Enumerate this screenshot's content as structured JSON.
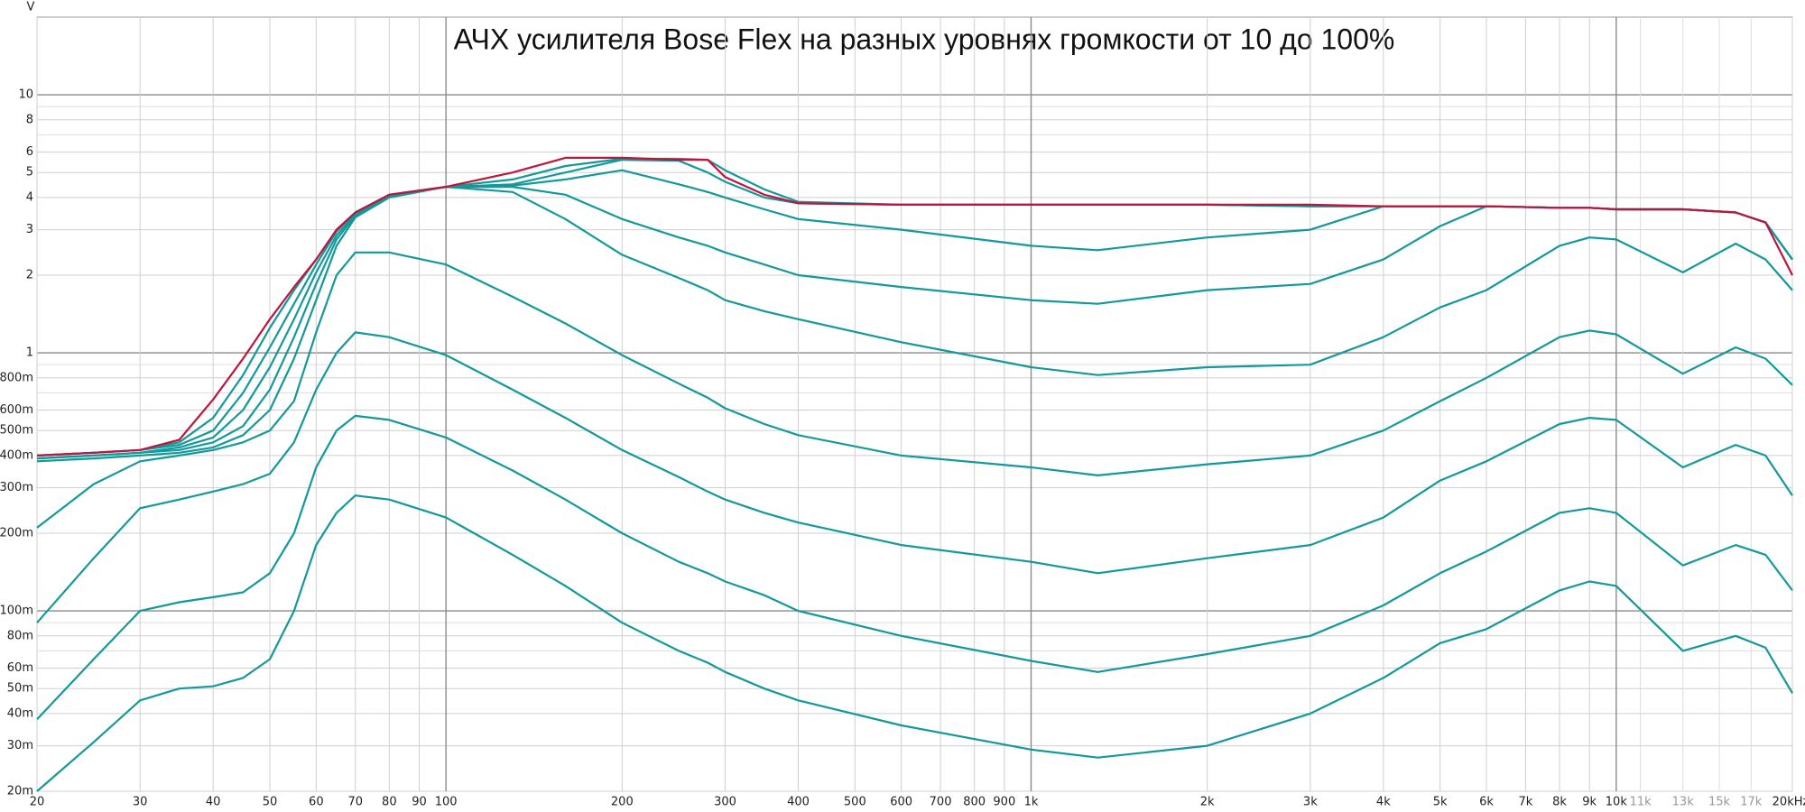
{
  "chart_data": {
    "type": "line",
    "title": "АЧХ усилителя Bose Flex на разных уровнях громкости от 10 до 100%",
    "y_unit": "V",
    "log_x": true,
    "log_y": true,
    "grid": true,
    "xlim": [
      20,
      20000
    ],
    "ylim": [
      0.02,
      20
    ],
    "xticks": [
      20,
      30,
      40,
      50,
      60,
      70,
      80,
      90,
      100,
      200,
      300,
      400,
      500,
      600,
      700,
      800,
      900,
      {
        "value": 1000,
        "label": "1k"
      },
      {
        "value": 2000,
        "label": "2k"
      },
      {
        "value": 3000,
        "label": "3k"
      },
      {
        "value": 4000,
        "label": "4k"
      },
      {
        "value": 5000,
        "label": "5k"
      },
      {
        "value": 6000,
        "label": "6k"
      },
      {
        "value": 7000,
        "label": "7k"
      },
      {
        "value": 8000,
        "label": "8k"
      },
      {
        "value": 9000,
        "label": "9k"
      },
      {
        "value": 10000,
        "label": "10k"
      },
      {
        "value": 20000,
        "label": "20kHz"
      }
    ],
    "xticks_minor": [
      {
        "value": 11000,
        "label": "11k"
      },
      {
        "value": 13000,
        "label": "13k"
      },
      {
        "value": 15000,
        "label": "15k"
      },
      {
        "value": 17000,
        "label": "17k"
      }
    ],
    "yticks": [
      10,
      8,
      6,
      5,
      4,
      3,
      2,
      1,
      {
        "value": 0.8,
        "label": "800m"
      },
      {
        "value": 0.6,
        "label": "600m"
      },
      {
        "value": 0.5,
        "label": "500m"
      },
      {
        "value": 0.4,
        "label": "400m"
      },
      {
        "value": 0.3,
        "label": "300m"
      },
      {
        "value": 0.2,
        "label": "200m"
      },
      {
        "value": 0.1,
        "label": "100m"
      },
      {
        "value": 0.08,
        "label": "80m"
      },
      {
        "value": 0.06,
        "label": "60m"
      },
      {
        "value": 0.05,
        "label": "50m"
      },
      {
        "value": 0.04,
        "label": "40m"
      },
      {
        "value": 0.03,
        "label": "30m"
      },
      {
        "value": 0.02,
        "label": "20m"
      }
    ],
    "yminor": [
      7,
      9,
      0.7,
      0.9,
      0.07,
      0.09
    ],
    "x": [
      20,
      25,
      30,
      35,
      40,
      45,
      50,
      55,
      60,
      65,
      70,
      80,
      100,
      130,
      160,
      200,
      250,
      280,
      300,
      350,
      400,
      600,
      1000,
      1300,
      2000,
      3000,
      4000,
      5000,
      6000,
      8000,
      9000,
      10000,
      13000,
      16000,
      18000,
      20000
    ],
    "series": [
      {
        "color": "#13999a",
        "values": [
          0.02,
          0.031,
          0.045,
          0.05,
          0.051,
          0.055,
          0.065,
          0.1,
          0.18,
          0.24,
          0.28,
          0.27,
          0.23,
          0.165,
          0.125,
          0.09,
          0.07,
          0.063,
          0.058,
          0.05,
          0.045,
          0.036,
          0.029,
          0.027,
          0.03,
          0.04,
          0.055,
          0.075,
          0.085,
          0.12,
          0.13,
          0.125,
          0.07,
          0.08,
          0.072,
          0.048
        ]
      },
      {
        "color": "#13999a",
        "values": [
          0.038,
          0.065,
          0.1,
          0.108,
          0.113,
          0.118,
          0.14,
          0.2,
          0.36,
          0.5,
          0.57,
          0.55,
          0.47,
          0.35,
          0.27,
          0.2,
          0.155,
          0.14,
          0.13,
          0.115,
          0.1,
          0.08,
          0.064,
          0.058,
          0.068,
          0.08,
          0.105,
          0.14,
          0.17,
          0.24,
          0.25,
          0.24,
          0.15,
          0.18,
          0.165,
          0.12
        ]
      },
      {
        "color": "#13999a",
        "values": [
          0.09,
          0.16,
          0.25,
          0.27,
          0.29,
          0.31,
          0.34,
          0.45,
          0.72,
          1.0,
          1.2,
          1.15,
          0.98,
          0.72,
          0.56,
          0.42,
          0.33,
          0.29,
          0.27,
          0.24,
          0.22,
          0.18,
          0.155,
          0.14,
          0.16,
          0.18,
          0.23,
          0.32,
          0.38,
          0.53,
          0.56,
          0.55,
          0.36,
          0.44,
          0.4,
          0.28
        ]
      },
      {
        "color": "#13999a",
        "values": [
          0.21,
          0.31,
          0.38,
          0.4,
          0.42,
          0.45,
          0.5,
          0.65,
          1.2,
          2.0,
          2.45,
          2.45,
          2.2,
          1.65,
          1.3,
          0.98,
          0.76,
          0.67,
          0.61,
          0.53,
          0.48,
          0.4,
          0.36,
          0.335,
          0.37,
          0.4,
          0.5,
          0.65,
          0.8,
          1.15,
          1.22,
          1.18,
          0.83,
          1.05,
          0.95,
          0.75
        ]
      },
      {
        "color": "#13999a",
        "values": [
          0.38,
          0.39,
          0.4,
          0.41,
          0.43,
          0.48,
          0.6,
          0.95,
          1.6,
          2.6,
          3.35,
          4.0,
          4.4,
          4.2,
          3.3,
          2.4,
          1.95,
          1.75,
          1.6,
          1.45,
          1.35,
          1.1,
          0.88,
          0.82,
          0.88,
          0.9,
          1.15,
          1.5,
          1.75,
          2.6,
          2.8,
          2.75,
          2.05,
          2.65,
          2.3,
          1.75
        ]
      },
      {
        "color": "#13999a",
        "values": [
          0.39,
          0.4,
          0.41,
          0.42,
          0.45,
          0.52,
          0.72,
          1.15,
          1.85,
          2.75,
          3.4,
          4.05,
          4.4,
          4.4,
          4.1,
          3.3,
          2.8,
          2.6,
          2.45,
          2.2,
          2.0,
          1.8,
          1.6,
          1.55,
          1.75,
          1.85,
          2.3,
          3.1,
          3.7,
          3.65,
          3.65,
          3.6,
          3.6,
          3.5,
          3.2,
          2.3
        ]
      },
      {
        "color": "#13999a",
        "values": [
          0.39,
          0.4,
          0.41,
          0.43,
          0.47,
          0.6,
          0.88,
          1.35,
          2.05,
          2.85,
          3.45,
          4.1,
          4.4,
          4.45,
          4.7,
          5.1,
          4.5,
          4.2,
          4.0,
          3.6,
          3.3,
          3.0,
          2.6,
          2.5,
          2.8,
          3.0,
          3.7,
          3.7,
          3.7,
          3.65,
          3.65,
          3.6,
          3.6,
          3.5,
          3.2,
          2.3
        ]
      },
      {
        "color": "#13999a",
        "values": [
          0.4,
          0.41,
          0.42,
          0.44,
          0.5,
          0.7,
          1.05,
          1.55,
          2.2,
          2.95,
          3.5,
          4.1,
          4.4,
          4.5,
          5.0,
          5.6,
          5.55,
          5.0,
          4.6,
          4.0,
          3.8,
          3.75,
          3.75,
          3.75,
          3.75,
          3.7,
          3.7,
          3.7,
          3.7,
          3.65,
          3.65,
          3.6,
          3.6,
          3.5,
          3.2,
          2.3
        ]
      },
      {
        "color": "#13999a",
        "values": [
          0.4,
          0.41,
          0.42,
          0.45,
          0.56,
          0.82,
          1.25,
          1.75,
          2.3,
          3.0,
          3.5,
          4.1,
          4.4,
          4.7,
          5.3,
          5.65,
          5.65,
          5.6,
          5.1,
          4.3,
          3.85,
          3.75,
          3.75,
          3.75,
          3.75,
          3.7,
          3.7,
          3.7,
          3.7,
          3.65,
          3.65,
          3.6,
          3.6,
          3.5,
          3.2,
          2.3
        ]
      },
      {
        "color": "#c0143c",
        "values": [
          0.4,
          0.41,
          0.42,
          0.46,
          0.66,
          0.95,
          1.35,
          1.8,
          2.3,
          3.0,
          3.5,
          4.1,
          4.4,
          5.0,
          5.7,
          5.7,
          5.6,
          5.6,
          4.8,
          4.1,
          3.8,
          3.75,
          3.75,
          3.75,
          3.75,
          3.75,
          3.7,
          3.7,
          3.7,
          3.65,
          3.65,
          3.6,
          3.6,
          3.5,
          3.2,
          2.0
        ]
      }
    ]
  }
}
